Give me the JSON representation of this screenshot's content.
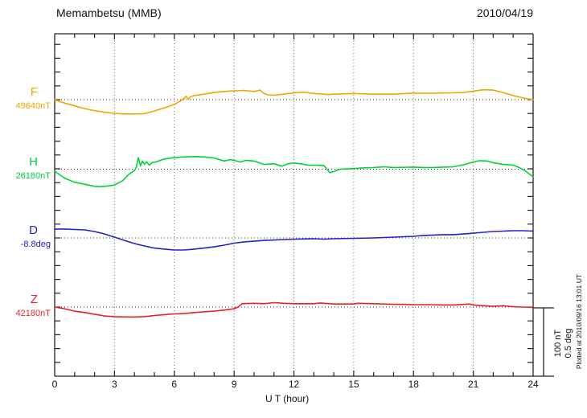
{
  "header": {
    "title": "Memambetsu (MMB)",
    "date": "2010/04/19"
  },
  "axis": {
    "x_label": "U T (hour)",
    "x_tick_labels": [
      "0",
      "3",
      "6",
      "9",
      "12",
      "15",
      "18",
      "21",
      "24"
    ],
    "x_tick_hours": [
      0,
      3,
      6,
      9,
      12,
      15,
      18,
      21,
      24
    ],
    "grid_hours": [
      3,
      6,
      9,
      12,
      15,
      18,
      21
    ],
    "x_range": [
      0,
      24
    ]
  },
  "scale_bar": {
    "line1": "100 nT",
    "line2": "0.5 deg",
    "nT_per_bar": 100,
    "deg_per_bar": 0.5
  },
  "footer_note": "Plotted at 2010/09/16 13:01 UT",
  "chart_data": {
    "type": "line",
    "title": "Memambetsu (MMB) magnetogram",
    "date": "2010/04/19",
    "xlabel": "U T (hour)",
    "xlim": [
      0,
      24
    ],
    "grid": "dotted vertical every 3 h, dotted horizontal baseline per trace",
    "note": "points are [hour, offset from baseline]; F,H,Z offsets in nT; D offsets in deg",
    "series": [
      {
        "name": "F",
        "unit": "nT",
        "baseline_label": "49640nT",
        "baseline_value": 49640,
        "color": "#f0a500",
        "points": [
          [
            0,
            0
          ],
          [
            0.5,
            -5
          ],
          [
            1,
            -9
          ],
          [
            1.5,
            -13
          ],
          [
            2,
            -16
          ],
          [
            2.5,
            -18.5
          ],
          [
            3,
            -20
          ],
          [
            3.5,
            -21
          ],
          [
            4,
            -21
          ],
          [
            4.5,
            -20.5
          ],
          [
            5,
            -16.5
          ],
          [
            5.5,
            -12
          ],
          [
            6,
            -7
          ],
          [
            6.3,
            -2
          ],
          [
            6.5,
            2
          ],
          [
            6.6,
            5
          ],
          [
            6.7,
            1
          ],
          [
            6.8,
            4
          ],
          [
            7,
            6
          ],
          [
            7.5,
            8
          ],
          [
            8,
            10.5
          ],
          [
            8.5,
            12
          ],
          [
            9,
            13
          ],
          [
            9.5,
            13.5
          ],
          [
            10,
            12
          ],
          [
            10.3,
            14
          ],
          [
            10.5,
            9
          ],
          [
            10.7,
            7
          ],
          [
            11,
            6.5
          ],
          [
            11.5,
            8
          ],
          [
            12,
            10
          ],
          [
            12.5,
            11
          ],
          [
            13,
            9
          ],
          [
            13.7,
            7.5
          ],
          [
            14,
            8
          ],
          [
            15,
            9
          ],
          [
            16,
            8
          ],
          [
            17,
            8
          ],
          [
            18,
            9.5
          ],
          [
            19,
            9.5
          ],
          [
            20,
            10
          ],
          [
            20.5,
            10.5
          ],
          [
            21,
            12.5
          ],
          [
            21.5,
            14.5
          ],
          [
            22,
            14
          ],
          [
            22.5,
            10.5
          ],
          [
            23,
            6
          ],
          [
            23.5,
            2.5
          ],
          [
            24,
            0
          ]
        ]
      },
      {
        "name": "H",
        "unit": "nT",
        "baseline_label": "26180nT",
        "baseline_value": 26180,
        "color": "#00d33c",
        "points": [
          [
            0,
            -3
          ],
          [
            0.5,
            -13
          ],
          [
            1,
            -19
          ],
          [
            1.5,
            -22
          ],
          [
            2,
            -25
          ],
          [
            2.3,
            -25.5
          ],
          [
            2.7,
            -24.5
          ],
          [
            3,
            -23
          ],
          [
            3.4,
            -17
          ],
          [
            3.7,
            -8
          ],
          [
            4,
            -2
          ],
          [
            4.1,
            3
          ],
          [
            4.2,
            17
          ],
          [
            4.3,
            5
          ],
          [
            4.4,
            12
          ],
          [
            4.5,
            7
          ],
          [
            4.6,
            11
          ],
          [
            4.75,
            6
          ],
          [
            4.9,
            10
          ],
          [
            5,
            10
          ],
          [
            5.5,
            15
          ],
          [
            6,
            17
          ],
          [
            6.5,
            18
          ],
          [
            7,
            18.5
          ],
          [
            7.5,
            18
          ],
          [
            8,
            16.5
          ],
          [
            8.5,
            12
          ],
          [
            8.8,
            14
          ],
          [
            9,
            13
          ],
          [
            9.3,
            10.5
          ],
          [
            9.6,
            13
          ],
          [
            10,
            12
          ],
          [
            10.5,
            7
          ],
          [
            11,
            8
          ],
          [
            11.4,
            4.5
          ],
          [
            11.7,
            8
          ],
          [
            12,
            9
          ],
          [
            12.3,
            8
          ],
          [
            12.7,
            6
          ],
          [
            13,
            6
          ],
          [
            13.5,
            5.5
          ],
          [
            13.8,
            -5
          ],
          [
            14,
            -3.5
          ],
          [
            14.3,
            0
          ],
          [
            15,
            1
          ],
          [
            15.5,
            2
          ],
          [
            16,
            2.5
          ],
          [
            16.5,
            3.5
          ],
          [
            17,
            2.5
          ],
          [
            18,
            3
          ],
          [
            18.5,
            2.5
          ],
          [
            19,
            2.5
          ],
          [
            19.5,
            3
          ],
          [
            20,
            3.5
          ],
          [
            20.5,
            6.5
          ],
          [
            21,
            10.5
          ],
          [
            21.3,
            12.5
          ],
          [
            21.7,
            12
          ],
          [
            22,
            9.5
          ],
          [
            22.5,
            7
          ],
          [
            23,
            6
          ],
          [
            23.3,
            2.5
          ],
          [
            23.6,
            -2.5
          ],
          [
            24,
            -11
          ]
        ]
      },
      {
        "name": "D",
        "unit": "deg",
        "baseline_label": "-8.8deg",
        "baseline_value": -8.8,
        "color": "#2222cc",
        "points": [
          [
            0,
            0.065
          ],
          [
            0.5,
            0.065
          ],
          [
            1,
            0.062
          ],
          [
            1.5,
            0.059
          ],
          [
            2,
            0.047
          ],
          [
            2.5,
            0.029
          ],
          [
            3,
            0.006
          ],
          [
            3.5,
            -0.018
          ],
          [
            4,
            -0.041
          ],
          [
            4.5,
            -0.059
          ],
          [
            5,
            -0.074
          ],
          [
            5.5,
            -0.082
          ],
          [
            6,
            -0.088
          ],
          [
            6.5,
            -0.088
          ],
          [
            7,
            -0.082
          ],
          [
            7.5,
            -0.074
          ],
          [
            8,
            -0.065
          ],
          [
            8.5,
            -0.053
          ],
          [
            9,
            -0.038
          ],
          [
            9.5,
            -0.029
          ],
          [
            10,
            -0.024
          ],
          [
            10.5,
            -0.018
          ],
          [
            11,
            -0.015
          ],
          [
            11.5,
            -0.012
          ],
          [
            12,
            -0.009
          ],
          [
            13,
            -0.006
          ],
          [
            13.5,
            -0.009
          ],
          [
            14,
            -0.006
          ],
          [
            15,
            -0.003
          ],
          [
            16,
            0
          ],
          [
            16.5,
            0.003
          ],
          [
            17,
            0.006
          ],
          [
            17.5,
            0.009
          ],
          [
            18,
            0.012
          ],
          [
            18.5,
            0.018
          ],
          [
            19,
            0.021
          ],
          [
            19.5,
            0.024
          ],
          [
            20,
            0.024
          ],
          [
            20.5,
            0.029
          ],
          [
            21,
            0.035
          ],
          [
            21.5,
            0.041
          ],
          [
            22,
            0.047
          ],
          [
            22.5,
            0.05
          ],
          [
            23,
            0.053
          ],
          [
            23.5,
            0.053
          ],
          [
            24,
            0.05
          ]
        ]
      },
      {
        "name": "Z",
        "unit": "nT",
        "baseline_label": "42180nT",
        "baseline_value": 42180,
        "color": "#e62222",
        "points": [
          [
            0,
            0
          ],
          [
            0.5,
            -2.5
          ],
          [
            1,
            -6
          ],
          [
            1.5,
            -8
          ],
          [
            2,
            -10.5
          ],
          [
            2.5,
            -13
          ],
          [
            3,
            -14
          ],
          [
            3.5,
            -14.5
          ],
          [
            4,
            -14.5
          ],
          [
            4.5,
            -14
          ],
          [
            5,
            -12.5
          ],
          [
            5.5,
            -11
          ],
          [
            6,
            -10
          ],
          [
            6.5,
            -9.5
          ],
          [
            7,
            -8
          ],
          [
            7.5,
            -7
          ],
          [
            8,
            -6
          ],
          [
            8.5,
            -4.5
          ],
          [
            9,
            -2.5
          ],
          [
            9.2,
            0
          ],
          [
            9.4,
            5
          ],
          [
            10,
            5.5
          ],
          [
            10.5,
            5
          ],
          [
            11,
            6.5
          ],
          [
            11.5,
            5.5
          ],
          [
            12,
            5
          ],
          [
            13,
            5
          ],
          [
            13.3,
            6
          ],
          [
            14,
            4.5
          ],
          [
            15,
            4.5
          ],
          [
            15.2,
            5.5
          ],
          [
            16,
            5
          ],
          [
            16.5,
            4.5
          ],
          [
            17,
            4
          ],
          [
            17.5,
            4
          ],
          [
            18,
            3.5
          ],
          [
            19,
            3.5
          ],
          [
            19.5,
            3
          ],
          [
            20,
            3
          ],
          [
            20.8,
            4.5
          ],
          [
            21,
            3
          ],
          [
            21.5,
            2
          ],
          [
            22,
            1
          ],
          [
            22.5,
            2
          ],
          [
            23,
            0.5
          ],
          [
            23.5,
            0
          ],
          [
            24,
            -0.5
          ]
        ]
      }
    ]
  }
}
